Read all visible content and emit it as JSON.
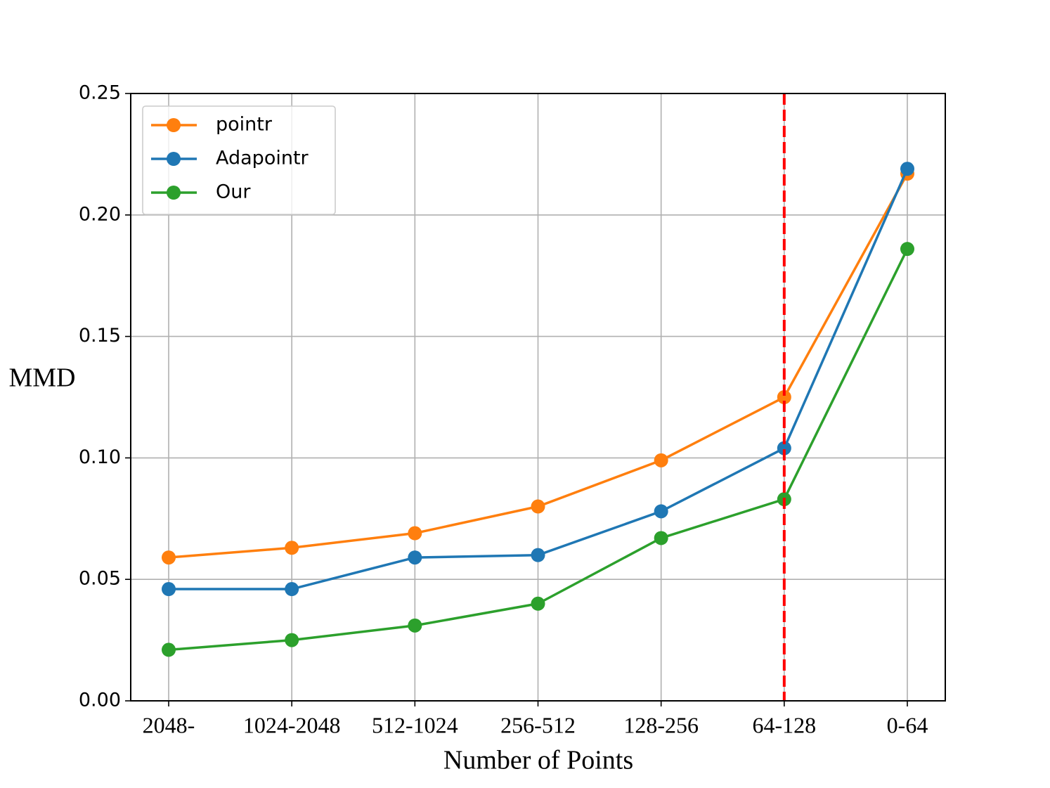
{
  "chart_data": {
    "type": "line",
    "xlabel": "Number of Points",
    "ylabel": "MMD",
    "categories": [
      "2048-",
      "1024-2048",
      "512-1024",
      "256-512",
      "128-256",
      "64-128",
      "0-64"
    ],
    "series": [
      {
        "name": "pointr",
        "color": "#ff7f0e",
        "values": [
          0.059,
          0.063,
          0.069,
          0.08,
          0.099,
          0.125,
          0.217
        ]
      },
      {
        "name": "Adapointr",
        "color": "#1f77b4",
        "values": [
          0.046,
          0.046,
          0.059,
          0.06,
          0.078,
          0.104,
          0.219
        ]
      },
      {
        "name": "Our",
        "color": "#2ca02c",
        "values": [
          0.021,
          0.025,
          0.031,
          0.04,
          0.067,
          0.083,
          0.186
        ]
      }
    ],
    "ylim": [
      0,
      0.25
    ],
    "yticks": [
      {
        "value": 0,
        "label": "0.00"
      },
      {
        "value": 0.05,
        "label": "0.05"
      },
      {
        "value": 0.1,
        "label": "0.10"
      },
      {
        "value": 0.15,
        "label": "0.15"
      },
      {
        "value": 0.2,
        "label": "0.20"
      },
      {
        "value": 0.25,
        "label": "0.25"
      }
    ],
    "grid": true,
    "legend": "upper left",
    "vline": {
      "x": "64-128",
      "color": "#ff0000",
      "style": "dashed"
    }
  }
}
